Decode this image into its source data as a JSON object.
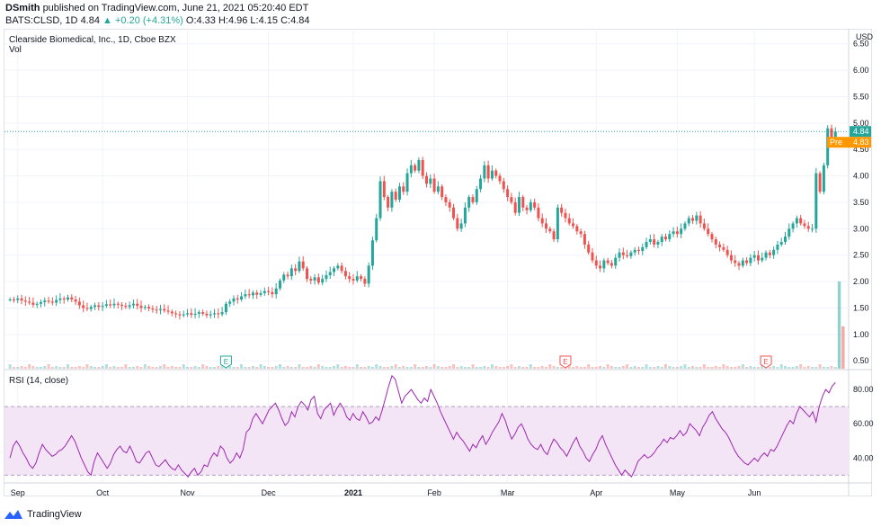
{
  "header": {
    "author": "DSmith",
    "published": "published on TradingView.com, June 21, 2021 05:20:40 EDT",
    "symbol": "BATS:CLSD, 1D",
    "price": "4.84",
    "change": "▲ +0.20 (+4.31%)",
    "ohlc": "O:4.33 H:4.96 L:4.15 C:4.84"
  },
  "footer": {
    "brand": "TradingView"
  },
  "colors": {
    "up": "#26a69a",
    "down": "#ef5350",
    "rsi": "#9c27b0",
    "rsi_band": "#f3e5f5",
    "last": "#26a69a",
    "pre": "#ff9800"
  },
  "chart_data": [
    {
      "type": "candlestick",
      "title": "Clearside Biomedical, Inc., 1D, Cboe BZX",
      "subtitle": "Vol",
      "y_axis_unit": "USD",
      "ylim": [
        0.35,
        6.75
      ],
      "y_ticks": [
        6.5,
        6.0,
        5.5,
        5.0,
        4.5,
        4.0,
        3.5,
        3.0,
        2.5,
        2.0,
        1.5,
        1.0,
        0.5
      ],
      "y_tick_labels": [
        "6.50",
        "6.00",
        "5.50",
        "5.00",
        "4.50",
        "4.00",
        "3.50",
        "3.00",
        "2.50",
        "2.00",
        "1.50",
        "1.00",
        "0.50"
      ],
      "x_labels": [
        "Sep",
        "Oct",
        "Nov",
        "Dec",
        "2021",
        "Feb",
        "Mar",
        "Apr",
        "May",
        "Jun"
      ],
      "last_price": {
        "value": 4.84,
        "label": "4.84"
      },
      "premarket": {
        "value": 4.83,
        "tag": "Pre",
        "label": "4.83"
      },
      "events": [
        {
          "index": 56,
          "label": "E"
        },
        {
          "index": 144,
          "label": "E"
        },
        {
          "index": 196,
          "label": "E"
        }
      ],
      "close": [
        1.66,
        1.65,
        1.68,
        1.64,
        1.62,
        1.6,
        1.56,
        1.58,
        1.61,
        1.64,
        1.62,
        1.6,
        1.65,
        1.68,
        1.66,
        1.7,
        1.66,
        1.62,
        1.55,
        1.5,
        1.48,
        1.52,
        1.55,
        1.52,
        1.54,
        1.57,
        1.55,
        1.58,
        1.56,
        1.54,
        1.52,
        1.55,
        1.58,
        1.54,
        1.5,
        1.52,
        1.49,
        1.47,
        1.46,
        1.48,
        1.45,
        1.43,
        1.4,
        1.38,
        1.36,
        1.38,
        1.4,
        1.37,
        1.39,
        1.42,
        1.39,
        1.36,
        1.38,
        1.4,
        1.38,
        1.42,
        1.58,
        1.62,
        1.68,
        1.66,
        1.72,
        1.76,
        1.74,
        1.79,
        1.75,
        1.78,
        1.82,
        1.8,
        1.76,
        1.87,
        2.02,
        2.13,
        2.1,
        2.25,
        2.2,
        2.38,
        2.25,
        2.05,
        2.02,
        2.08,
        1.98,
        2.05,
        2.12,
        2.18,
        2.25,
        2.3,
        2.2,
        2.1,
        2.05,
        2.02,
        2.1,
        2.05,
        1.96,
        2.3,
        2.78,
        3.2,
        3.9,
        3.6,
        3.4,
        3.7,
        3.55,
        3.8,
        3.7,
        4.05,
        4.2,
        4.1,
        4.3,
        4.0,
        3.85,
        3.95,
        3.7,
        3.8,
        3.6,
        3.5,
        3.4,
        3.2,
        3.0,
        3.1,
        3.4,
        3.6,
        3.5,
        3.75,
        3.95,
        4.2,
        3.95,
        4.1,
        4.0,
        3.9,
        3.75,
        3.6,
        3.5,
        3.3,
        3.6,
        3.4,
        3.35,
        3.5,
        3.4,
        3.2,
        3.1,
        3.0,
        2.95,
        2.8,
        3.4,
        3.3,
        3.2,
        3.1,
        3.05,
        2.95,
        2.9,
        2.7,
        2.55,
        2.4,
        2.3,
        2.25,
        2.4,
        2.35,
        2.3,
        2.45,
        2.55,
        2.5,
        2.48,
        2.55,
        2.6,
        2.58,
        2.65,
        2.75,
        2.8,
        2.7,
        2.75,
        2.85,
        2.8,
        2.9,
        2.95,
        2.9,
        3.0,
        3.1,
        3.2,
        3.15,
        3.25,
        3.1,
        3.0,
        2.9,
        2.8,
        2.7,
        2.65,
        2.6,
        2.5,
        2.4,
        2.35,
        2.3,
        2.4,
        2.35,
        2.45,
        2.5,
        2.4,
        2.45,
        2.55,
        2.5,
        2.6,
        2.7,
        2.75,
        2.85,
        3.0,
        3.1,
        3.2,
        3.1,
        3.05,
        3.0,
        3.0,
        4.05,
        3.7,
        4.2,
        4.9,
        4.64,
        4.84
      ],
      "volume_label": "Vol",
      "volume_spikes": [
        {
          "index": 215,
          "value": 2.0
        },
        {
          "index": 216,
          "value": 1.15
        }
      ]
    },
    {
      "type": "line",
      "title": "RSI (14, close)",
      "ylim": [
        26,
        90
      ],
      "y_ticks": [
        80,
        60,
        40
      ],
      "y_tick_labels": [
        "80.00",
        "60.00",
        "40.00"
      ],
      "band": [
        30,
        70
      ],
      "values": [
        40,
        47,
        50,
        47,
        43,
        40,
        36,
        34,
        37,
        43,
        48,
        45,
        43,
        41,
        42,
        44,
        45,
        47,
        50,
        53,
        50,
        45,
        40,
        36,
        32,
        30,
        38,
        43,
        40,
        37,
        34,
        37,
        42,
        45,
        47,
        44,
        43,
        47,
        43,
        38,
        37,
        40,
        43,
        44,
        40,
        36,
        35,
        37,
        39,
        36,
        34,
        33,
        36,
        33,
        31,
        29,
        32,
        34,
        30,
        32,
        36,
        35,
        40,
        43,
        41,
        47,
        45,
        40,
        37,
        39,
        43,
        40,
        45,
        55,
        57,
        63,
        66,
        63,
        60,
        64,
        68,
        70,
        72,
        68,
        63,
        59,
        61,
        67,
        64,
        70,
        73,
        71,
        68,
        74,
        76,
        66,
        63,
        68,
        70,
        72,
        65,
        69,
        72,
        69,
        64,
        62,
        66,
        63,
        62,
        67,
        64,
        60,
        61,
        64,
        62,
        68,
        75,
        82,
        88,
        86,
        79,
        72,
        76,
        78,
        80,
        77,
        74,
        72,
        75,
        73,
        80,
        76,
        72,
        67,
        63,
        59,
        55,
        51,
        55,
        52,
        50,
        47,
        44,
        48,
        46,
        50,
        53,
        48,
        51,
        55,
        58,
        61,
        66,
        62,
        56,
        51,
        54,
        58,
        60,
        56,
        51,
        48,
        46,
        45,
        48,
        44,
        42,
        47,
        51,
        49,
        46,
        44,
        41,
        45,
        49,
        52,
        47,
        44,
        40,
        38,
        42,
        45,
        50,
        53,
        48,
        44,
        40,
        36,
        33,
        30,
        33,
        31,
        29,
        33,
        38,
        40,
        42,
        40,
        41,
        43,
        46,
        48,
        51,
        49,
        52,
        51,
        53,
        56,
        53,
        55,
        60,
        58,
        56,
        53,
        58,
        61,
        65,
        67,
        63,
        60,
        57,
        55,
        52,
        48,
        44,
        41,
        39,
        37,
        36,
        38,
        40,
        38,
        41,
        43,
        41,
        45,
        44,
        47,
        51,
        55,
        59,
        62,
        60,
        66,
        70,
        68,
        66,
        64,
        67,
        61,
        70,
        76,
        80,
        78,
        82,
        84
      ]
    }
  ]
}
